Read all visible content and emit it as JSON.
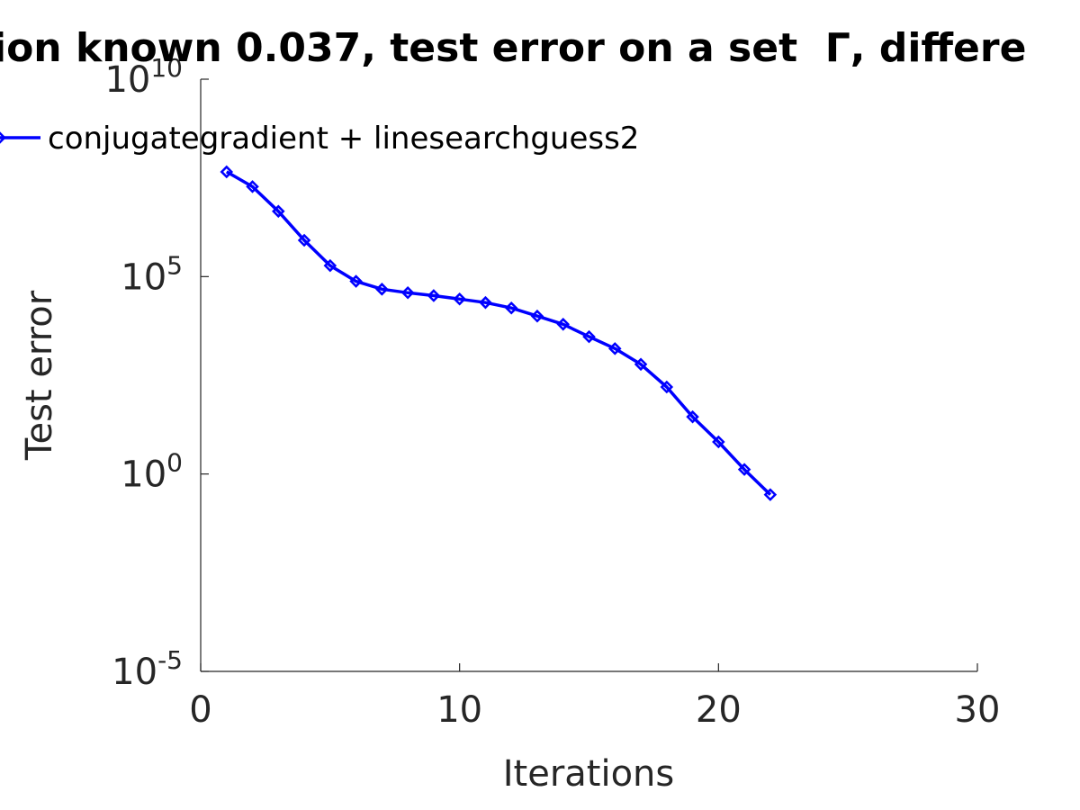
{
  "chart_data": {
    "type": "line",
    "title": "ion known 0.037, test error on a set  Γ, differe",
    "xlabel": "Iterations",
    "ylabel": "Test error",
    "xlim": [
      0,
      30
    ],
    "ylim": [
      1e-05,
      10000000000.0
    ],
    "yscale": "log",
    "xticks": [
      0,
      10,
      20,
      30
    ],
    "xtick_labels": [
      "0",
      "10",
      "20",
      "30"
    ],
    "yticks": [
      1e-05,
      1,
      100000.0,
      10000000000.0
    ],
    "ytick_labels": [
      {
        "base": "10",
        "exp": "-5"
      },
      {
        "base": "10",
        "exp": "0"
      },
      {
        "base": "10",
        "exp": "5"
      },
      {
        "base": "10",
        "exp": "10"
      }
    ],
    "grid": false,
    "legend_position": "top-left",
    "series": [
      {
        "name": "conjugategradient + linesearchguess2",
        "color": "#0000ff",
        "marker": "diamond",
        "x": [
          1,
          2,
          3,
          4,
          5,
          6,
          7,
          8,
          9,
          10,
          11,
          12,
          13,
          14,
          15,
          16,
          17,
          18,
          19,
          20,
          21,
          22
        ],
        "y": [
          45000000.0,
          19000000.0,
          4500000.0,
          830000.0,
          190000.0,
          76000.0,
          48000.0,
          39000.0,
          33000.0,
          27000.0,
          22000.0,
          16000.0,
          10000.0,
          6200.0,
          3000.0,
          1500.0,
          600.0,
          160.0,
          28.0,
          6.5,
          1.3,
          0.3
        ]
      }
    ]
  }
}
